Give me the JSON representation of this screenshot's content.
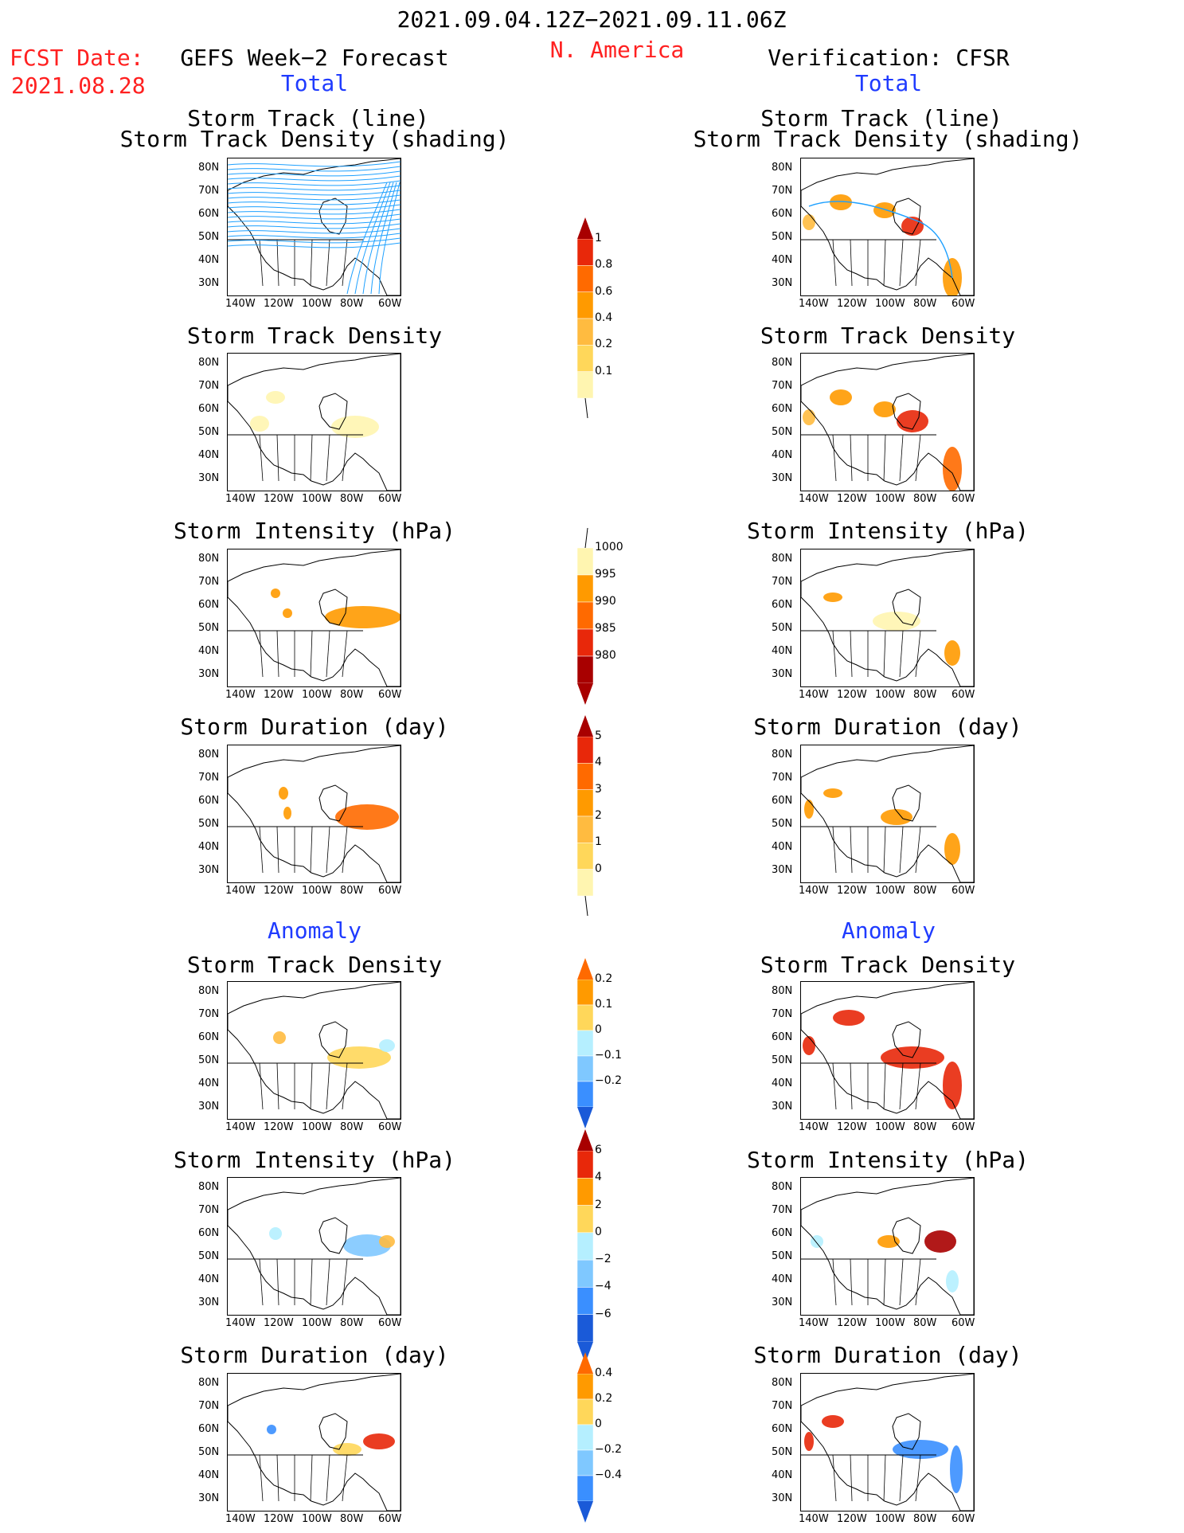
{
  "header": {
    "period": "2021.09.04.12Z−2021.09.11.06Z",
    "region": "N. America",
    "fcst_label": "FCST Date:",
    "fcst_date": "2021.08.28",
    "left_title": "GEFS Week−2 Forecast",
    "right_title": "Verification: CFSR",
    "total": "Total",
    "anomaly": "Anomaly"
  },
  "panel_titles": {
    "track_line": "Storm Track (line)",
    "track_shading": "Storm Track Density (shading)",
    "density": "Storm Track Density",
    "intensity": "Storm Intensity (hPa)",
    "duration": "Storm Duration (day)"
  },
  "axes": {
    "lat_labels": [
      "80N",
      "70N",
      "60N",
      "50N",
      "40N",
      "30N"
    ],
    "lon_labels": [
      "140W",
      "120W",
      "100W",
      "80W",
      "60W"
    ]
  },
  "colorbars": {
    "density_total": [
      "0.1",
      "0.2",
      "0.4",
      "0.6",
      "0.8",
      "1"
    ],
    "intensity_total": [
      "1000",
      "995",
      "990",
      "985",
      "980"
    ],
    "duration_total": [
      "0",
      "1",
      "2",
      "3",
      "4",
      "5"
    ],
    "density_anom": [
      "0.2",
      "0.1",
      "0",
      "−0.1",
      "−0.2"
    ],
    "intensity_anom": [
      "6",
      "4",
      "2",
      "0",
      "−2",
      "−4",
      "−6"
    ],
    "duration_anom": [
      "0.4",
      "0.2",
      "0",
      "−0.2",
      "−0.4"
    ]
  },
  "colors": {
    "title_red": "#ff2020",
    "section_blue": "#1f3bff",
    "yellow_light": "#fff5b0",
    "yellow": "#ffd75a",
    "orange_light": "#ffbb40",
    "orange": "#ff9a00",
    "orange_dark": "#ff6a00",
    "red": "#e8280a",
    "dark_red": "#a80000",
    "track_blue": "#1ea0ff",
    "cyan_light": "#b5efff",
    "blue_light": "#7fc8ff",
    "blue": "#3a8fff",
    "blue_dark": "#1a5ad8"
  }
}
